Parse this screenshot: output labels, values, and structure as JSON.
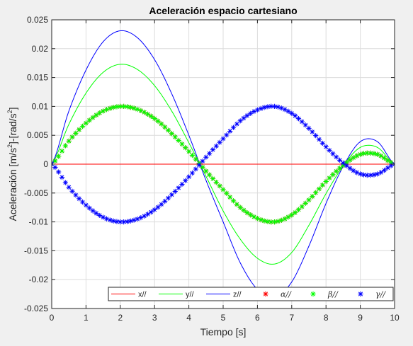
{
  "chart_data": {
    "type": "line",
    "title": "Aceleración espacio cartesiano",
    "xlabel": "Tiempo [s]",
    "ylabel_parts": [
      "Aceleración [m/s",
      "2",
      "]-[rad/s",
      "2",
      "]"
    ],
    "xlim": [
      0,
      10
    ],
    "ylim": [
      -0.025,
      0.025
    ],
    "xticks": [
      0,
      1,
      2,
      3,
      4,
      5,
      6,
      7,
      8,
      9,
      10
    ],
    "xtick_labels": [
      "0",
      "1",
      "2",
      "3",
      "4",
      "5",
      "6",
      "7",
      "8",
      "9",
      "10"
    ],
    "yticks": [
      -0.025,
      -0.02,
      -0.015,
      -0.01,
      -0.005,
      0,
      0.005,
      0.01,
      0.015,
      0.02,
      0.025
    ],
    "ytick_labels": [
      "-0.025",
      "-0.02",
      "-0.015",
      "-0.01",
      "-0.005",
      "0",
      "0.005",
      "0.01",
      "0.015",
      "0.02",
      "0.025"
    ],
    "grid": true,
    "legend_position": "bottom-right",
    "x": [
      0,
      0.5,
      1,
      1.5,
      2,
      2.5,
      3,
      3.5,
      4,
      4.5,
      5,
      5.5,
      6,
      6.5,
      7,
      7.5,
      8,
      8.5,
      9,
      9.5,
      10
    ],
    "series": [
      {
        "name": "x//",
        "style": "line",
        "color": "#ff0000",
        "values": [
          0,
          0,
          0,
          0,
          0,
          0,
          0,
          0,
          0,
          0,
          0,
          0,
          0,
          0,
          0,
          0,
          0,
          0,
          0,
          0,
          0
        ]
      },
      {
        "name": "y//",
        "style": "line",
        "color": "#00ff00",
        "values": [
          0,
          0.0069,
          0.0123,
          0.0159,
          0.0173,
          0.0164,
          0.0136,
          0.0092,
          0.0037,
          -0.0021,
          -0.0081,
          -0.013,
          -0.0163,
          -0.0173,
          -0.0153,
          -0.0106,
          -0.0051,
          -0.0003,
          0.0029,
          0.0029,
          0
        ]
      },
      {
        "name": "z//",
        "style": "line",
        "color": "#0000ff",
        "values": [
          0,
          0.0092,
          0.0163,
          0.0212,
          0.0231,
          0.0219,
          0.0181,
          0.0122,
          0.005,
          -0.0028,
          -0.01,
          -0.0171,
          -0.0217,
          -0.0231,
          -0.0204,
          -0.0142,
          -0.0068,
          -0.0004,
          0.0039,
          0.0039,
          0
        ]
      },
      {
        "name": "α//",
        "style": "marker",
        "color": "#ff0000",
        "values": [
          0,
          0.004,
          0.0071,
          0.0092,
          0.01,
          0.0095,
          0.0079,
          0.0053,
          0.0022,
          -0.0012,
          -0.0044,
          -0.0075,
          -0.0094,
          -0.01,
          -0.0088,
          -0.0062,
          -0.003,
          -0.0002,
          0.0017,
          0.0017,
          0
        ]
      },
      {
        "name": "β//",
        "style": "marker",
        "color": "#00ff00",
        "values": [
          0,
          0.004,
          0.0071,
          0.0092,
          0.01,
          0.0095,
          0.0079,
          0.0053,
          0.0022,
          -0.0012,
          -0.0044,
          -0.0075,
          -0.0094,
          -0.01,
          -0.0088,
          -0.0062,
          -0.003,
          -0.0002,
          0.0017,
          0.0017,
          0
        ]
      },
      {
        "name": "γ//",
        "style": "marker",
        "color": "#0000ff",
        "values": [
          0,
          -0.004,
          -0.0071,
          -0.0092,
          -0.01,
          -0.0095,
          -0.0079,
          -0.0053,
          -0.0022,
          0.0012,
          0.0044,
          0.0075,
          0.0094,
          0.01,
          0.0088,
          0.0062,
          0.003,
          0.0002,
          -0.0017,
          -0.0017,
          0
        ]
      }
    ]
  }
}
